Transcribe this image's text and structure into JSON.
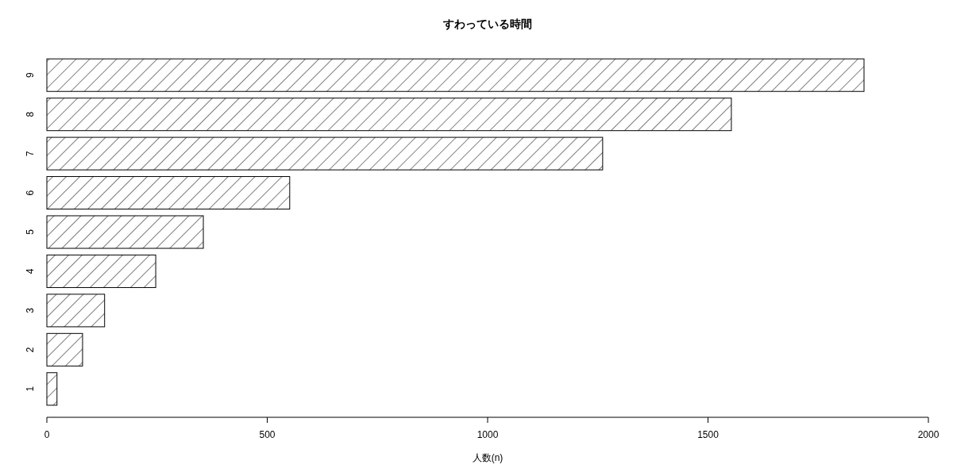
{
  "chart_data": {
    "type": "bar",
    "orientation": "horizontal",
    "title": "すわっている時間",
    "xlabel": "人数(n)",
    "categories": [
      "9",
      "8",
      "7",
      "6",
      "5",
      "4",
      "3",
      "2",
      "1"
    ],
    "values": [
      1854,
      1553,
      1261,
      551,
      355,
      247,
      131,
      81,
      23
    ],
    "color": "#ffffff",
    "xlim": [
      0,
      2000
    ],
    "xticks": [
      0,
      500,
      1000,
      1500,
      2000
    ],
    "grid": false
  }
}
